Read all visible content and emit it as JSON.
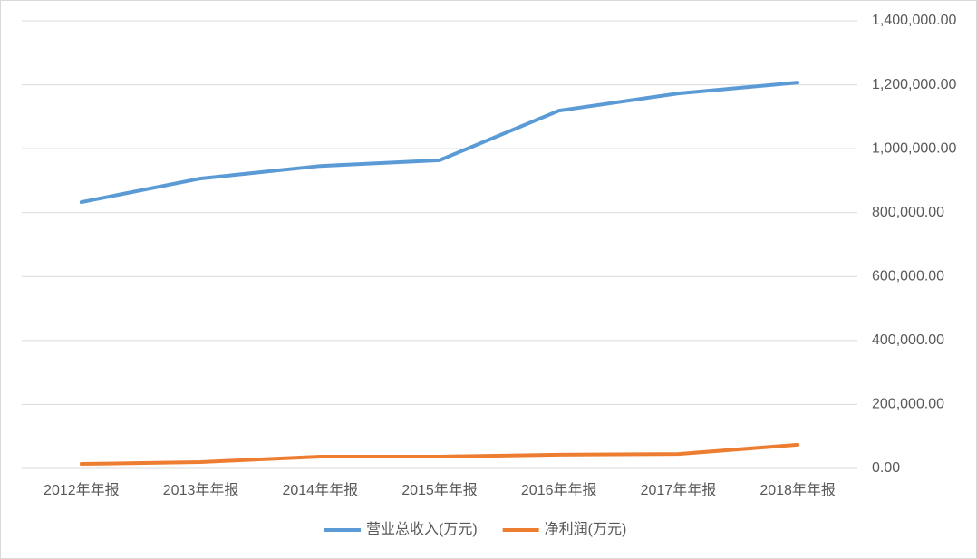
{
  "chart_data": {
    "type": "line",
    "categories": [
      "2012年年报",
      "2013年年报",
      "2014年年报",
      "2015年年报",
      "2016年年报",
      "2017年年报",
      "2018年年报"
    ],
    "series": [
      {
        "name": "营业总收入(万元)",
        "color": "#5b9bd5",
        "values": [
          833000,
          907000,
          946000,
          964000,
          1119000,
          1173000,
          1207000
        ]
      },
      {
        "name": "净利润(万元)",
        "color": "#ed7d31",
        "values": [
          14000,
          20000,
          37000,
          37000,
          43000,
          45000,
          74000
        ]
      }
    ],
    "ylim": [
      0,
      1400000
    ],
    "yticks": [
      {
        "value": 0,
        "label": "0.00"
      },
      {
        "value": 200000,
        "label": "200,000.00"
      },
      {
        "value": 400000,
        "label": "400,000.00"
      },
      {
        "value": 600000,
        "label": "600,000.00"
      },
      {
        "value": 800000,
        "label": "800,000.00"
      },
      {
        "value": 1000000,
        "label": "1,000,000.00"
      },
      {
        "value": 1200000,
        "label": "1,200,000.00"
      },
      {
        "value": 1400000,
        "label": "1,400,000.00"
      }
    ],
    "grid": true,
    "legend": "bottom"
  }
}
